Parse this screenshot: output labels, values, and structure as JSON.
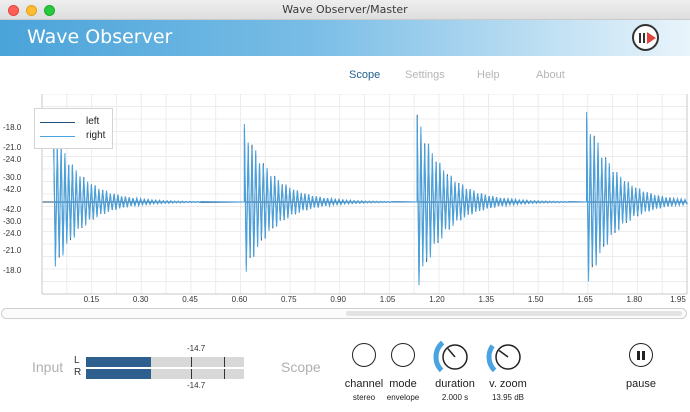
{
  "window": {
    "title": "Wave Observer/Master"
  },
  "app": {
    "title": "Wave Observer",
    "record_icon": "pause-play-icon"
  },
  "tabs": [
    {
      "label": "Scope",
      "active": true
    },
    {
      "label": "Settings",
      "active": false
    },
    {
      "label": "Help",
      "active": false
    },
    {
      "label": "About",
      "active": false
    }
  ],
  "chart_data": {
    "type": "line",
    "legend": {
      "entries": [
        "left",
        "right"
      ],
      "placement": "top-left"
    },
    "y_tick_labels": [
      "-18.0",
      "-21.0",
      "-24.0",
      "-30.0",
      "-42.0",
      "-42.0",
      "-30.0",
      "-24.0",
      "-21.0",
      "-18.0"
    ],
    "x_tick_labels": [
      "0.15",
      "0.30",
      "0.45",
      "0.60",
      "0.75",
      "0.90",
      "1.05",
      "1.20",
      "1.35",
      "1.50",
      "1.65",
      "1.80",
      "1.95"
    ],
    "xlim": [
      0.0,
      1.96
    ],
    "grid": true,
    "series": [
      {
        "name": "left",
        "color": "#1f4f7a",
        "bursts": [
          {
            "start": 0.035,
            "amplitude": 0.78
          },
          {
            "start": 0.615,
            "amplitude": 0.82
          },
          {
            "start": 1.14,
            "amplitude": 0.93
          },
          {
            "start": 1.655,
            "amplitude": 0.94
          }
        ]
      },
      {
        "name": "right",
        "color": "#4aa3e0",
        "bursts": [
          {
            "start": 0.035,
            "amplitude": 0.8
          },
          {
            "start": 0.615,
            "amplitude": 0.83
          },
          {
            "start": 1.14,
            "amplitude": 0.95
          },
          {
            "start": 1.655,
            "amplitude": 0.96
          }
        ]
      }
    ]
  },
  "input": {
    "label": "Input",
    "channels": [
      "L",
      "R"
    ],
    "level_L": 0.41,
    "level_R": 0.41,
    "peak_L": "-14.7",
    "peak_R": "-14.7",
    "meter_color": "#2f5f8e"
  },
  "scope_section": {
    "label": "Scope"
  },
  "controls": [
    {
      "label": "channel",
      "value": "stereo",
      "icon": "channel-knob"
    },
    {
      "label": "mode",
      "value": "envelope",
      "icon": "mode-knob"
    },
    {
      "label": "duration",
      "value": "2.000 s",
      "icon": "duration-knob",
      "level": 0.35
    },
    {
      "label": "v. zoom",
      "value": "13.95 dB",
      "icon": "vzoom-knob",
      "level": 0.3
    }
  ],
  "pause": {
    "label": "pause",
    "icon": "pause-icon"
  },
  "colors": {
    "accent": "#4aa3d9",
    "wave": "#4aa3e0"
  }
}
